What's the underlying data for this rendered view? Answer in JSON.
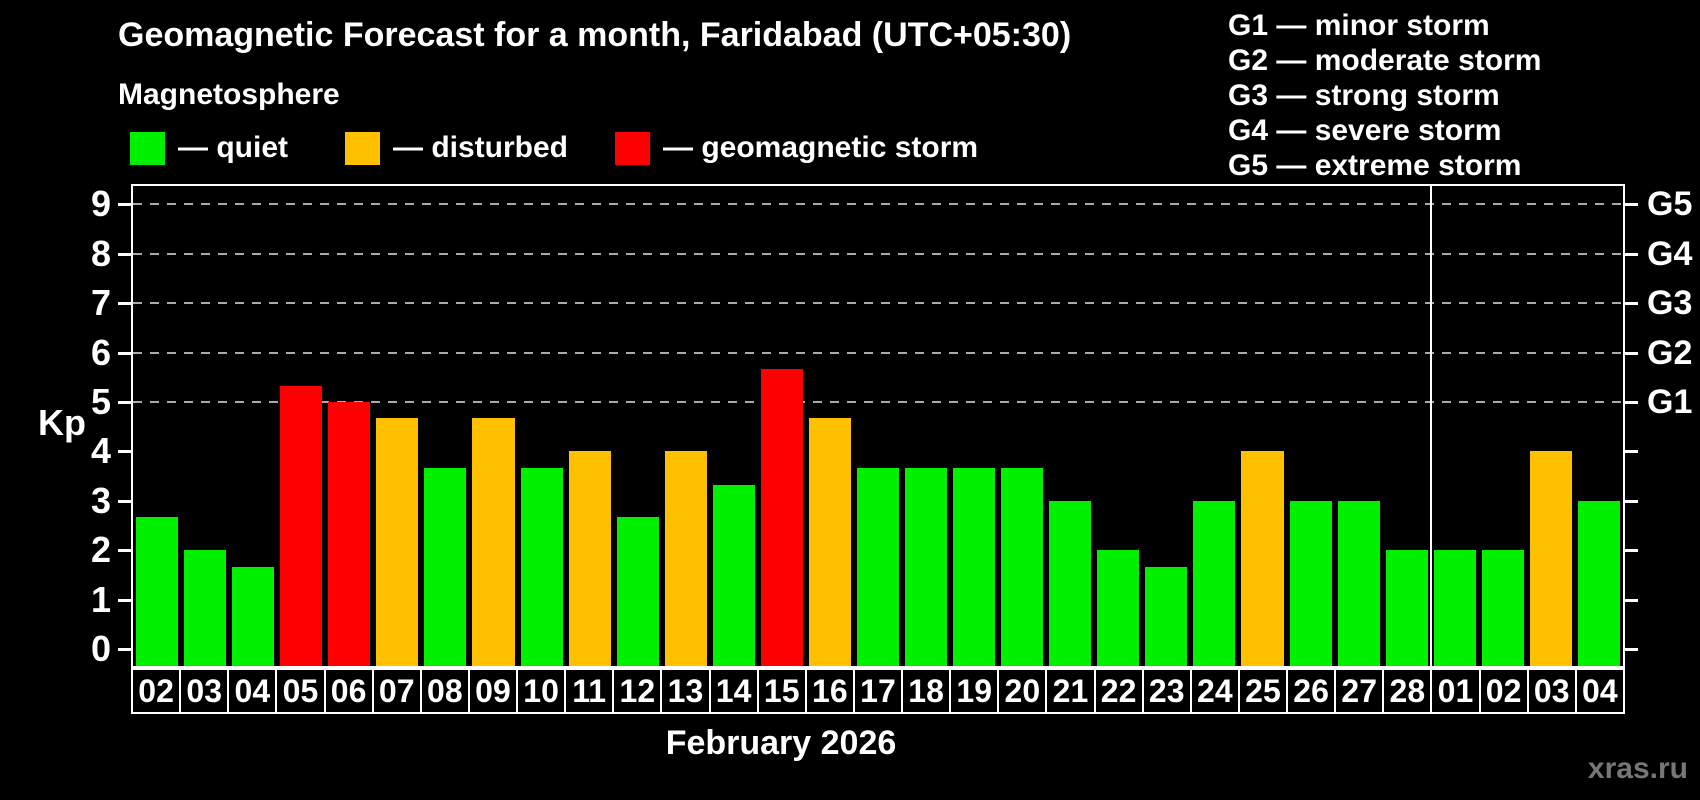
{
  "header": {
    "title": "Geomagnetic Forecast for a month, Faridabad (UTC+05:30)",
    "subtitle": "Magnetosphere"
  },
  "legend": {
    "items": [
      {
        "key": "quiet",
        "label": "— quiet"
      },
      {
        "key": "disturbed",
        "label": "— disturbed"
      },
      {
        "key": "storm",
        "label": "— geomagnetic storm"
      }
    ]
  },
  "g_legend": {
    "lines": [
      "G1 — minor storm",
      "G2 — moderate storm",
      "G3 — strong storm",
      "G4 — severe storm",
      "G5 — extreme storm"
    ]
  },
  "axes": {
    "left_label": "Kp",
    "month_label": "February 2026"
  },
  "watermark": "xras.ru",
  "colors": {
    "quiet": "#00f000",
    "disturbed": "#ffc000",
    "storm": "#ff0000",
    "grid": "#aaaaaa",
    "frame": "#ffffff"
  },
  "chart_data": {
    "type": "bar",
    "title": "Geomagnetic Forecast for a month, Faridabad (UTC+05:30)",
    "xlabel": "February 2026",
    "ylabel": "Kp",
    "ylim": [
      0,
      9.4
    ],
    "grid": "dashed horizontal at Kp 5-9 only",
    "yticks": [
      0,
      1,
      2,
      3,
      4,
      5,
      6,
      7,
      8,
      9
    ],
    "right_axis_labels": [
      {
        "text": "G1",
        "kp": 5
      },
      {
        "text": "G2",
        "kp": 6
      },
      {
        "text": "G3",
        "kp": 7
      },
      {
        "text": "G4",
        "kp": 8
      },
      {
        "text": "G5",
        "kp": 9
      }
    ],
    "month_boundary_index": 27,
    "categories": [
      "02",
      "03",
      "04",
      "05",
      "06",
      "07",
      "08",
      "09",
      "10",
      "11",
      "12",
      "13",
      "14",
      "15",
      "16",
      "17",
      "18",
      "19",
      "20",
      "21",
      "22",
      "23",
      "24",
      "25",
      "26",
      "27",
      "28",
      "01",
      "02",
      "03",
      "04"
    ],
    "values": [
      2.67,
      2.0,
      1.67,
      5.33,
      5.0,
      4.67,
      3.67,
      4.67,
      3.67,
      4.0,
      2.67,
      4.0,
      3.33,
      5.67,
      4.67,
      3.67,
      3.67,
      3.67,
      3.67,
      3.0,
      2.0,
      1.67,
      3.0,
      4.0,
      3.0,
      3.0,
      2.0,
      2.0,
      2.0,
      4.0,
      3.0
    ],
    "statuses": [
      "quiet",
      "quiet",
      "quiet",
      "storm",
      "storm",
      "disturbed",
      "quiet",
      "disturbed",
      "quiet",
      "disturbed",
      "quiet",
      "disturbed",
      "quiet",
      "storm",
      "disturbed",
      "quiet",
      "quiet",
      "quiet",
      "quiet",
      "quiet",
      "quiet",
      "quiet",
      "quiet",
      "disturbed",
      "quiet",
      "quiet",
      "quiet",
      "quiet",
      "quiet",
      "disturbed",
      "quiet"
    ]
  }
}
